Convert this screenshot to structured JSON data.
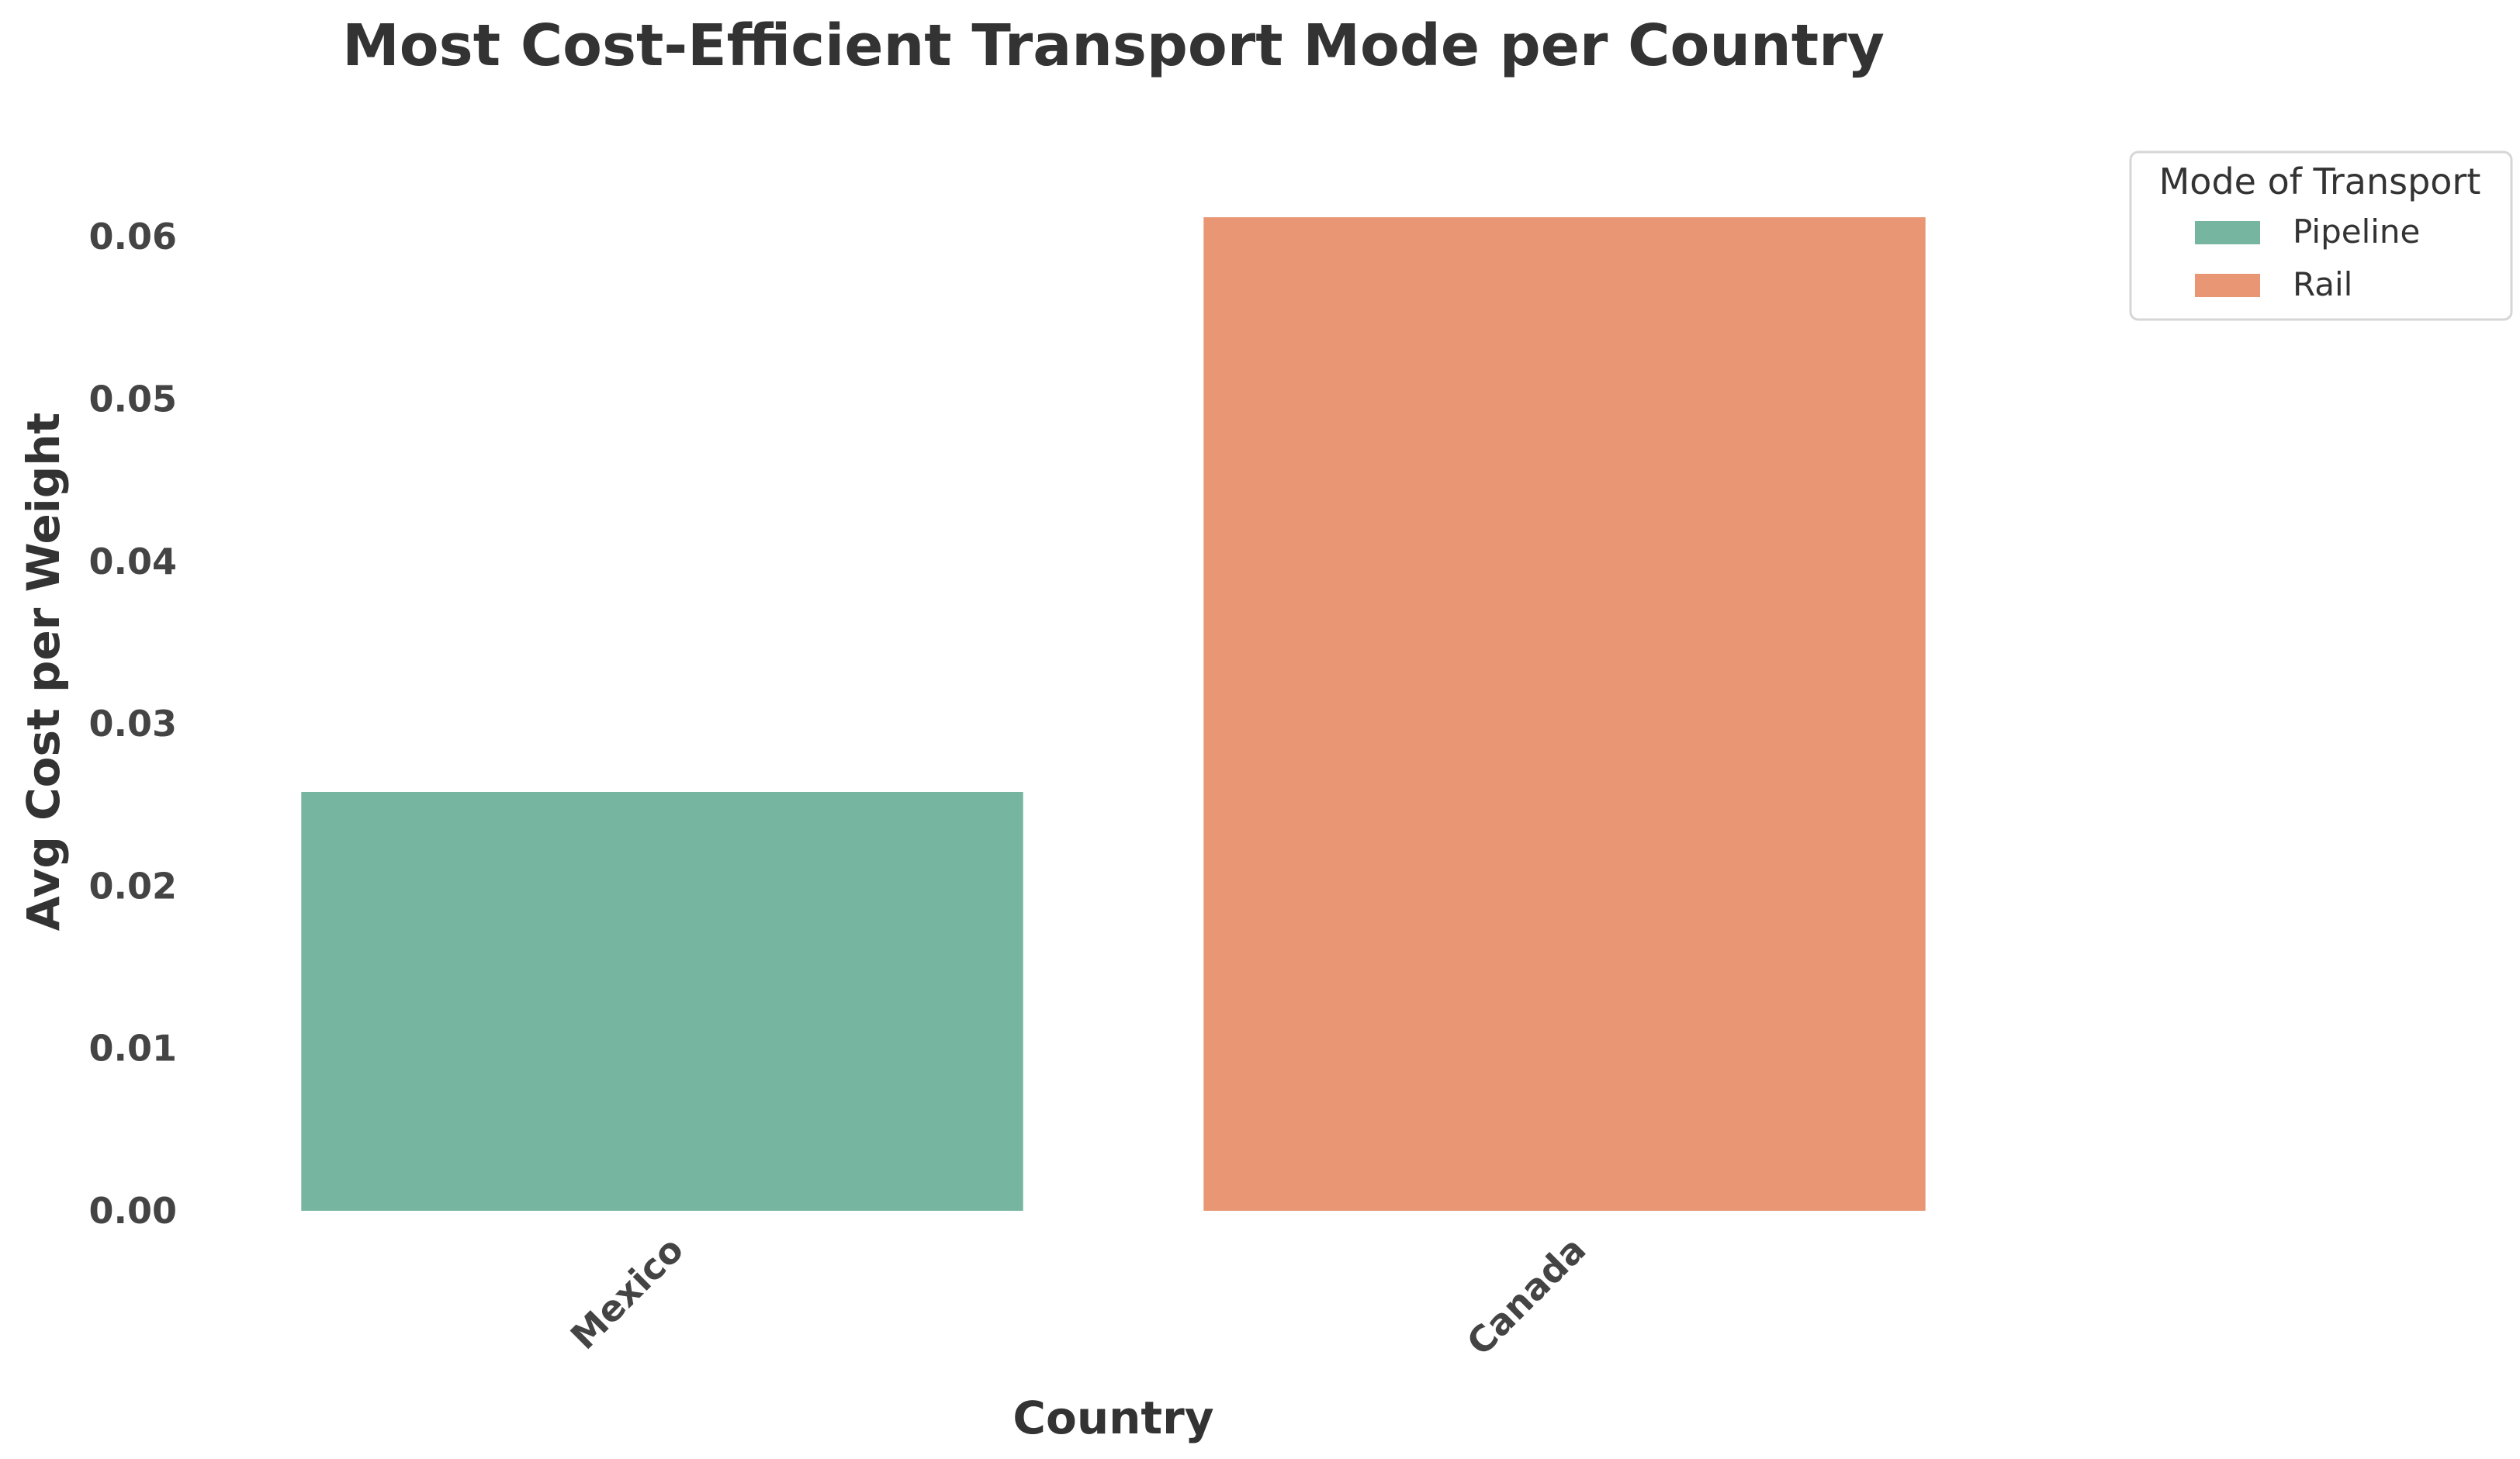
{
  "chart_data": {
    "type": "bar",
    "title": "Most Cost-Efficient Transport Mode per Country",
    "xlabel": "Country",
    "ylabel": "Avg Cost per Weight",
    "categories": [
      "Mexico",
      "Canada"
    ],
    "values": [
      0.0258,
      0.0612
    ],
    "bar_modes": [
      "Pipeline",
      "Rail"
    ],
    "ylim": [
      0,
      0.0645
    ],
    "yticks": [
      "0.00",
      "0.01",
      "0.02",
      "0.03",
      "0.04",
      "0.05",
      "0.06"
    ],
    "ytick_values": [
      0,
      0.01,
      0.02,
      0.03,
      0.04,
      0.05,
      0.06
    ],
    "grid": false,
    "legend": {
      "title": "Mode of Transport",
      "placement": "outside-top-right",
      "items": [
        {
          "label": "Pipeline",
          "color": "#76b6a0"
        },
        {
          "label": "Rail",
          "color": "#e99674"
        }
      ]
    }
  }
}
